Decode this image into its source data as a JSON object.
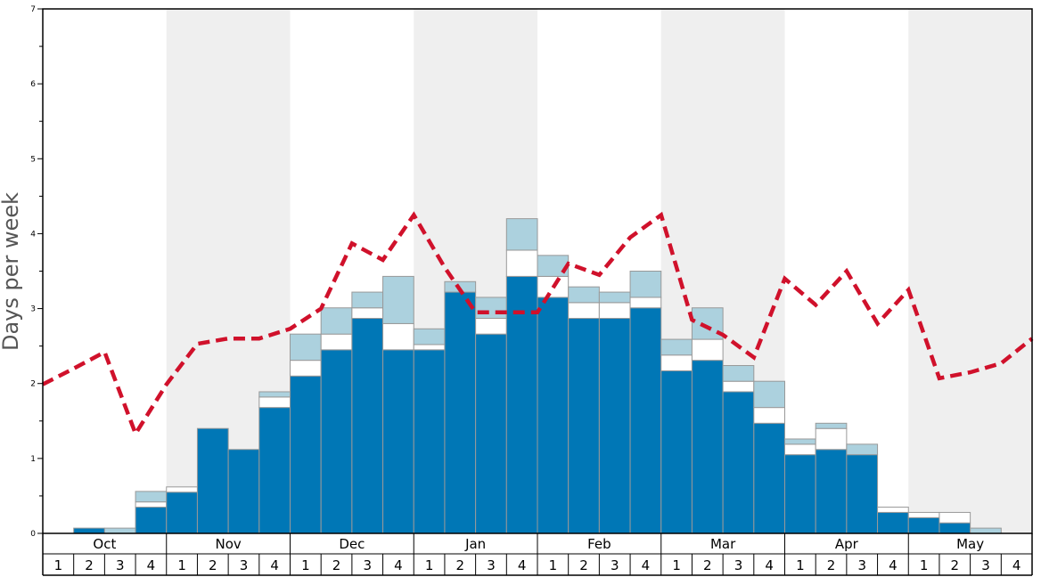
{
  "chart_data": {
    "type": "bar",
    "ylabel": "Days per week",
    "ylim": [
      0,
      7
    ],
    "yticks": [
      0,
      1,
      2,
      3,
      4,
      5,
      6,
      7
    ],
    "months": [
      "Oct",
      "Nov",
      "Dec",
      "Jan",
      "Feb",
      "Mar",
      "Apr",
      "May"
    ],
    "weeks": [
      "1",
      "2",
      "3",
      "4"
    ],
    "shaded_months": [
      "Nov",
      "Jan",
      "Mar",
      "May"
    ],
    "grid": false,
    "colors": {
      "bottom": "#0077b6",
      "middle": "#ffffff",
      "top": "#acd1de",
      "line": "#d0112b",
      "shade": "#efefef",
      "bar_edge": "#999999"
    },
    "series": [
      {
        "layer": "bottom",
        "values": [
          0,
          0.07,
          0,
          0.35,
          0.55,
          1.4,
          1.12,
          1.68,
          2.1,
          2.45,
          2.87,
          2.45,
          2.45,
          3.22,
          2.66,
          3.43,
          3.15,
          2.87,
          2.87,
          3.01,
          2.17,
          2.31,
          1.89,
          1.47,
          1.05,
          1.12,
          1.05,
          0.28,
          0.21,
          0.14,
          0,
          0
        ]
      },
      {
        "layer": "middle",
        "values": [
          0,
          0,
          0,
          0.07,
          0.07,
          0,
          0,
          0.14,
          0.21,
          0.21,
          0.14,
          0.35,
          0.07,
          0,
          0.21,
          0.35,
          0.28,
          0.21,
          0.21,
          0.14,
          0.21,
          0.28,
          0.14,
          0.21,
          0.14,
          0.28,
          0,
          0.07,
          0.07,
          0.14,
          0,
          0
        ]
      },
      {
        "layer": "top",
        "values": [
          0,
          0,
          0.07,
          0.14,
          0,
          0,
          0,
          0.07,
          0.35,
          0.35,
          0.21,
          0.63,
          0.21,
          0.14,
          0.28,
          0.42,
          0.28,
          0.21,
          0.14,
          0.35,
          0.21,
          0.42,
          0.21,
          0.35,
          0.07,
          0.07,
          0.14,
          0,
          0,
          0,
          0.07,
          0
        ]
      }
    ],
    "line": {
      "style": "dashed",
      "values": [
        1.99,
        2.2,
        2.42,
        1.33,
        1.99,
        2.53,
        2.6,
        2.6,
        2.73,
        3.0,
        3.87,
        3.65,
        4.25,
        3.55,
        2.95,
        2.95,
        2.95,
        3.6,
        3.45,
        3.95,
        4.25,
        2.85,
        2.65,
        2.35,
        3.4,
        3.05,
        3.5,
        2.8,
        3.25,
        2.07,
        2.15,
        2.27,
        2.6
      ]
    }
  }
}
